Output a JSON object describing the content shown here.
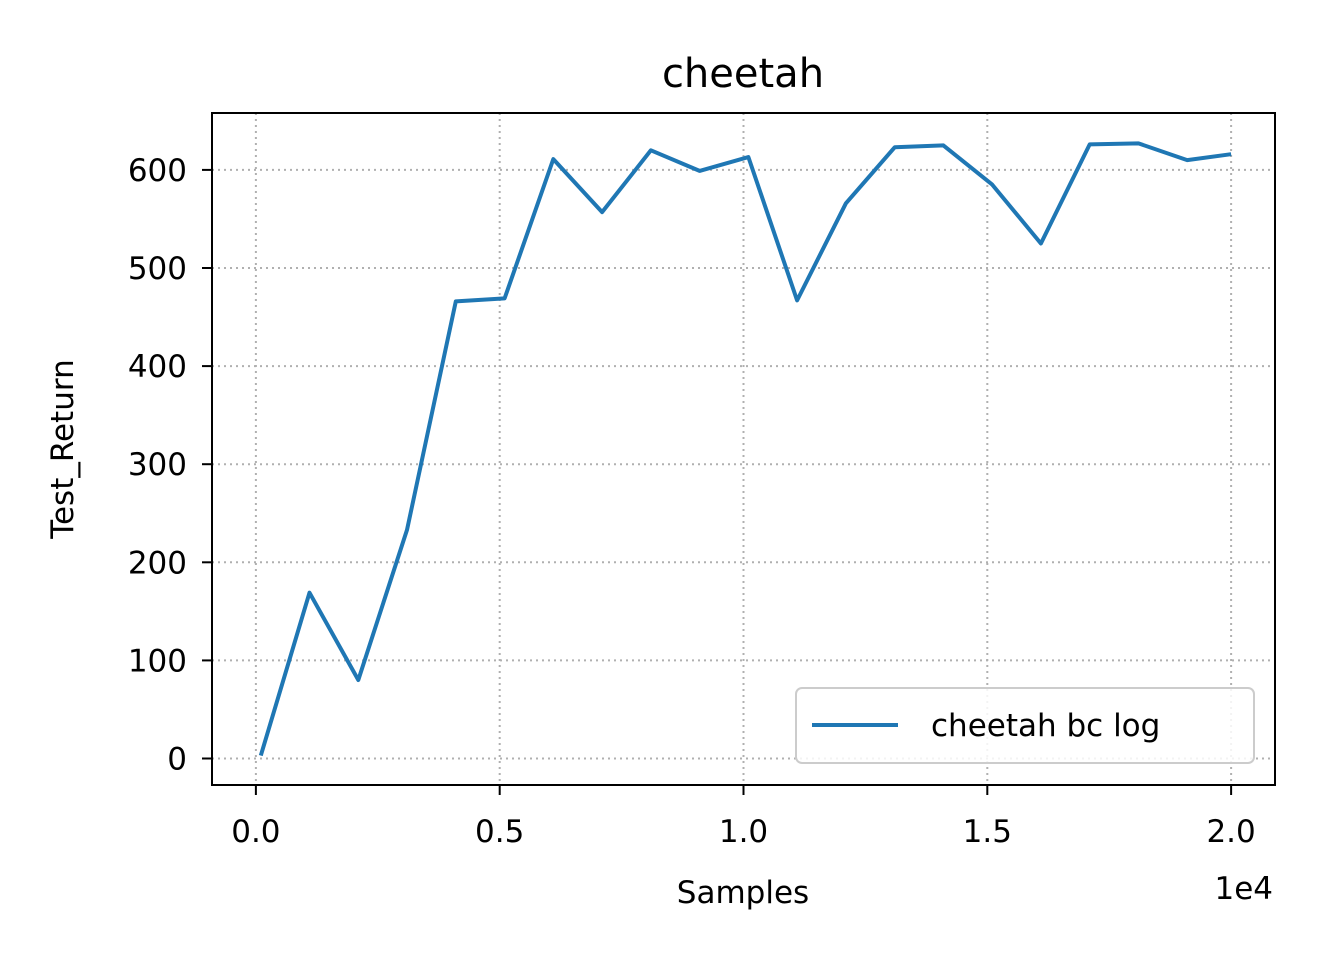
{
  "chart_data": {
    "type": "line",
    "title": "cheetah",
    "xlabel": "Samples",
    "ylabel": "Test_Return",
    "x_offset_label": "1e4",
    "xlim": [
      -900,
      20900
    ],
    "ylim": [
      -27,
      658
    ],
    "x_ticks": [
      0,
      5000,
      10000,
      15000,
      20000
    ],
    "x_tick_labels": [
      "0.0",
      "0.5",
      "1.0",
      "1.5",
      "2.0"
    ],
    "y_ticks": [
      0,
      100,
      200,
      300,
      400,
      500,
      600
    ],
    "y_tick_labels": [
      "0",
      "100",
      "200",
      "300",
      "400",
      "500",
      "600"
    ],
    "grid": true,
    "legend_position": "lower right",
    "series": [
      {
        "name": "cheetah bc log",
        "color": "#1f77b4",
        "x": [
          100,
          1100,
          2100,
          3100,
          4100,
          5100,
          6100,
          7100,
          8100,
          9100,
          10100,
          11100,
          12100,
          13100,
          14100,
          15100,
          16100,
          17100,
          18100,
          19100,
          20000
        ],
        "y": [
          3,
          169,
          80,
          233,
          466,
          469,
          611,
          557,
          620,
          599,
          613,
          467,
          566,
          623,
          625,
          585,
          525,
          626,
          627,
          610,
          616
        ]
      }
    ]
  }
}
